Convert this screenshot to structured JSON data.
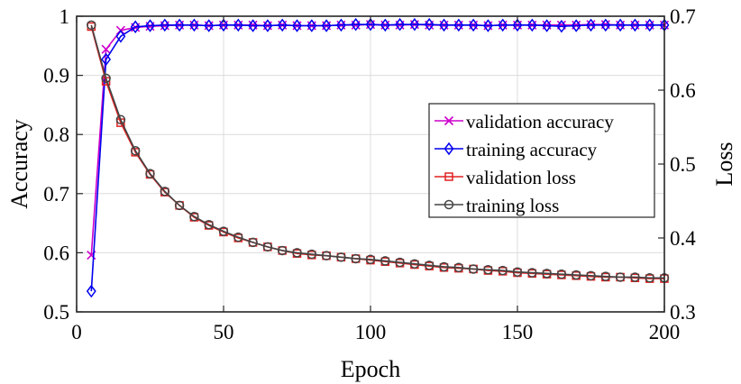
{
  "chart_data": {
    "type": "line",
    "xlabel": "Epoch",
    "ylabel_left": "Accuracy",
    "ylabel_right": "Loss",
    "xlim": [
      0,
      200
    ],
    "ylim_left": [
      0.5,
      1.0
    ],
    "ylim_right": [
      0.3,
      0.7
    ],
    "xticks": [
      "0",
      "50",
      "100",
      "150",
      "200"
    ],
    "yticks_left": [
      "0.5",
      "0.6",
      "0.7",
      "0.8",
      "0.9",
      "1"
    ],
    "yticks_right": [
      "0.3",
      "0.4",
      "0.5",
      "0.6",
      "0.7"
    ],
    "grid": true,
    "legend_position": "right",
    "x": [
      5,
      10,
      15,
      20,
      25,
      30,
      35,
      40,
      45,
      50,
      55,
      60,
      65,
      70,
      75,
      80,
      85,
      90,
      95,
      100,
      105,
      110,
      115,
      120,
      125,
      130,
      135,
      140,
      145,
      150,
      155,
      160,
      165,
      170,
      175,
      180,
      185,
      190,
      195,
      200
    ],
    "series": [
      {
        "name": "validation accuracy",
        "axis": "left",
        "color": "#cc00cc",
        "marker": "x",
        "values": [
          0.596,
          0.944,
          0.976,
          0.981,
          0.983,
          0.984,
          0.985,
          0.985,
          0.984,
          0.985,
          0.985,
          0.985,
          0.984,
          0.985,
          0.984,
          0.984,
          0.984,
          0.985,
          0.985,
          0.986,
          0.985,
          0.985,
          0.986,
          0.985,
          0.985,
          0.985,
          0.985,
          0.984,
          0.985,
          0.985,
          0.985,
          0.985,
          0.985,
          0.985,
          0.986,
          0.986,
          0.985,
          0.985,
          0.985,
          0.985
        ]
      },
      {
        "name": "training accuracy",
        "axis": "left",
        "color": "#0000ee",
        "marker": "diamond",
        "values": [
          0.535,
          0.927,
          0.966,
          0.982,
          0.984,
          0.985,
          0.985,
          0.985,
          0.984,
          0.985,
          0.985,
          0.984,
          0.984,
          0.985,
          0.984,
          0.984,
          0.984,
          0.985,
          0.986,
          0.986,
          0.985,
          0.986,
          0.986,
          0.986,
          0.985,
          0.985,
          0.985,
          0.984,
          0.985,
          0.985,
          0.985,
          0.984,
          0.983,
          0.984,
          0.985,
          0.985,
          0.985,
          0.985,
          0.985,
          0.985
        ]
      },
      {
        "name": "validation loss",
        "axis": "right",
        "color": "#e02020",
        "marker": "square",
        "values": [
          0.686,
          0.612,
          0.556,
          0.516,
          0.486,
          0.462,
          0.444,
          0.428,
          0.417,
          0.408,
          0.4,
          0.394,
          0.388,
          0.383,
          0.379,
          0.377,
          0.376,
          0.374,
          0.372,
          0.37,
          0.368,
          0.366,
          0.364,
          0.362,
          0.36,
          0.359,
          0.358,
          0.356,
          0.355,
          0.353,
          0.352,
          0.351,
          0.35,
          0.349,
          0.348,
          0.347,
          0.347,
          0.346,
          0.345,
          0.345
        ]
      },
      {
        "name": "training loss",
        "axis": "right",
        "color": "#444444",
        "marker": "circle",
        "values": [
          0.688,
          0.616,
          0.56,
          0.518,
          0.487,
          0.463,
          0.444,
          0.429,
          0.418,
          0.409,
          0.401,
          0.394,
          0.388,
          0.383,
          0.38,
          0.378,
          0.376,
          0.374,
          0.372,
          0.371,
          0.369,
          0.367,
          0.365,
          0.363,
          0.361,
          0.36,
          0.358,
          0.357,
          0.356,
          0.354,
          0.353,
          0.352,
          0.351,
          0.35,
          0.349,
          0.348,
          0.347,
          0.347,
          0.346,
          0.346
        ]
      }
    ]
  }
}
